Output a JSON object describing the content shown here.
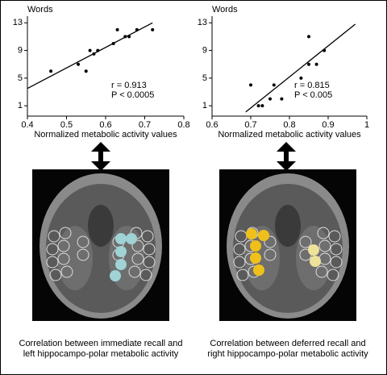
{
  "chart_data": [
    {
      "type": "scatter",
      "ylabel": "Words",
      "xlabel": "Normalized metabolic activity values",
      "x": [
        0.46,
        0.53,
        0.55,
        0.56,
        0.57,
        0.58,
        0.62,
        0.63,
        0.65,
        0.66,
        0.68,
        0.72
      ],
      "values": [
        6,
        7,
        6,
        9,
        8.5,
        9,
        10,
        12,
        11,
        11,
        12,
        12
      ],
      "color": "#000000",
      "fit": {
        "x": [
          0.4,
          0.72
        ],
        "y": [
          3.5,
          13
        ]
      },
      "xlim": [
        0.4,
        0.8
      ],
      "xticks": [
        0.4,
        0.5,
        0.6,
        0.7,
        0.8
      ],
      "ylim": [
        -0.5,
        13.5
      ],
      "yticks": [
        1,
        5,
        9,
        13
      ],
      "annotations": [
        "r = 0.913",
        "P < 0.0005"
      ]
    },
    {
      "type": "scatter",
      "ylabel": "Words",
      "xlabel": "Normalized metabolic activity values",
      "x": [
        0.7,
        0.72,
        0.73,
        0.75,
        0.76,
        0.78,
        0.83,
        0.85,
        0.85,
        0.87,
        0.89
      ],
      "values": [
        4,
        1,
        1,
        2,
        4,
        2,
        5,
        11,
        7,
        7,
        9
      ],
      "color": "#000000",
      "fit": {
        "x": [
          0.687,
          0.97
        ],
        "y": [
          0.1,
          12.8
        ]
      },
      "xlim": [
        0.6,
        1
      ],
      "xticks": [
        0.6,
        0.7,
        0.8,
        0.9,
        1
      ],
      "ylim": [
        -0.5,
        13.5
      ],
      "yticks": [
        1,
        5,
        9,
        13
      ],
      "annotations": [
        "r = 0.815",
        "P < 0.005"
      ]
    }
  ],
  "captions": [
    [
      "Correlation between immediate recall and",
      "left hippocampo-polar metabolic activity"
    ],
    [
      "Correlation between deferred recall and",
      "right hippocampo-polar metabolic activity"
    ]
  ]
}
